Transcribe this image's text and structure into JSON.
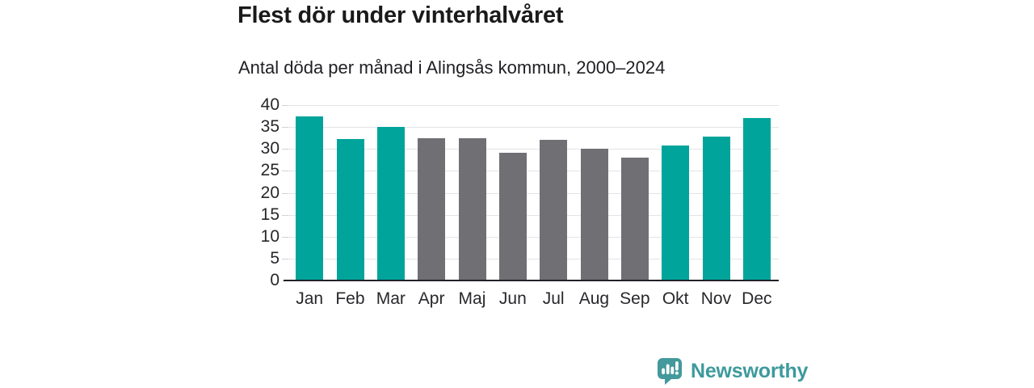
{
  "header": {
    "title": "Flest dör under vinterhalvåret",
    "subtitle": "Antal döda per månad i Alingsås kommun, 2000–2024"
  },
  "chart_data": {
    "type": "bar",
    "title": "Flest dör under vinterhalvåret",
    "subtitle": "Antal döda per månad i Alingsås kommun, 2000–2024",
    "categories": [
      "Jan",
      "Feb",
      "Mar",
      "Apr",
      "Maj",
      "Jun",
      "Jul",
      "Aug",
      "Sep",
      "Okt",
      "Nov",
      "Dec"
    ],
    "values": [
      37.5,
      32.2,
      35.1,
      32.4,
      32.4,
      29.1,
      32.0,
      30.1,
      28.1,
      30.8,
      32.9,
      37.0
    ],
    "bar_colors": [
      "winter",
      "winter",
      "winter",
      "summer",
      "summer",
      "summer",
      "summer",
      "summer",
      "summer",
      "winter",
      "winter",
      "winter"
    ],
    "colors": {
      "winter": "#00a49b",
      "summer": "#6f6f74"
    },
    "xlabel": "",
    "ylabel": "",
    "ylim": [
      0,
      40
    ],
    "yticks": [
      0,
      5,
      10,
      15,
      20,
      25,
      30,
      35,
      40
    ],
    "grid": true,
    "legend_position": "none"
  },
  "footer": {
    "brand": "Newsworthy",
    "logo_icon": "bar-chart-speech-bubble-icon",
    "brand_color": "#3d9a9c"
  }
}
